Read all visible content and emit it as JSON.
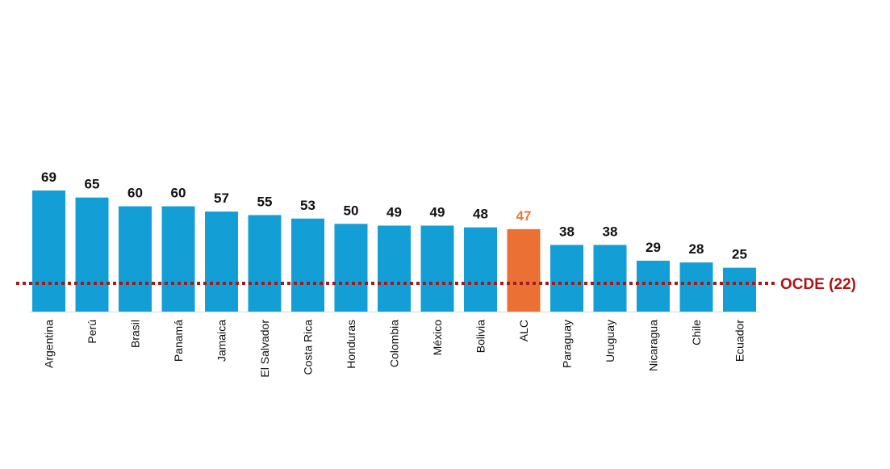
{
  "chart_data": {
    "type": "bar",
    "categories": [
      "Argentina",
      "Perú",
      "Brasil",
      "Panamá",
      "Jamaica",
      "El Salvador",
      "Costa Rica",
      "Honduras",
      "Colombia",
      "México",
      "Bolivia",
      "ALC",
      "Paraguay",
      "Uruguay",
      "Nicaragua",
      "Chile",
      "Ecuador"
    ],
    "values": [
      69,
      65,
      60,
      60,
      57,
      55,
      53,
      50,
      49,
      49,
      48,
      47,
      38,
      38,
      29,
      28,
      25
    ],
    "value_labels": [
      "69",
      "65",
      "60",
      "60",
      "57",
      "55",
      "53",
      "50",
      "49",
      "49",
      "48",
      "47",
      "38",
      "38",
      "29",
      "28",
      "25"
    ],
    "highlight_category": "ALC",
    "colors": {
      "bar": "#139fd6",
      "highlight": "#ea7034",
      "highlight_label": "#e8783f",
      "reference_line": "#a51a1a",
      "reference_label": "#b01313"
    },
    "reference_line": {
      "value": 22,
      "label": "OCDE (22)",
      "style": "dotted"
    },
    "title": "",
    "xlabel": "",
    "ylabel": "",
    "ylim": [
      0,
      100
    ],
    "grid": false,
    "y_axis_visible": false
  }
}
